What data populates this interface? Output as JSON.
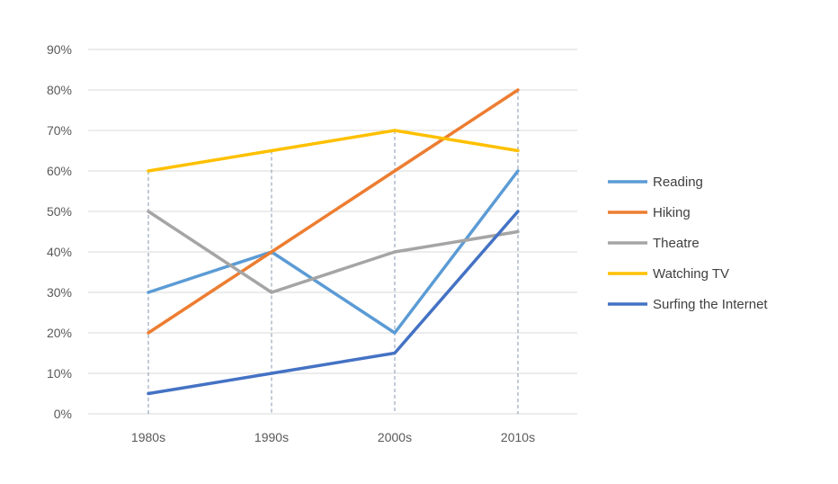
{
  "chart_data": {
    "type": "line",
    "title": "",
    "xlabel": "",
    "ylabel": "",
    "categories": [
      "1980s",
      "1990s",
      "2000s",
      "2010s"
    ],
    "ylim": [
      0,
      90
    ],
    "y_ticks": [
      "0%",
      "10%",
      "20%",
      "30%",
      "40%",
      "50%",
      "60%",
      "70%",
      "80%",
      "90%"
    ],
    "y_tick_values": [
      0,
      10,
      20,
      30,
      40,
      50,
      60,
      70,
      80,
      90
    ],
    "grid": true,
    "drop_lines": true,
    "legend_position": "right",
    "series": [
      {
        "name": "Reading",
        "color": "#5b9bd5",
        "values": [
          30,
          40,
          20,
          60
        ]
      },
      {
        "name": "Hiking",
        "color": "#ed7d31",
        "values": [
          20,
          40,
          60,
          80
        ]
      },
      {
        "name": "Theatre",
        "color": "#a5a5a5",
        "values": [
          50,
          30,
          40,
          45
        ]
      },
      {
        "name": "Watching TV",
        "color": "#ffc000",
        "values": [
          60,
          65,
          70,
          65
        ]
      },
      {
        "name": "Surfing the Internet",
        "color": "#4472c4",
        "values": [
          5,
          10,
          15,
          50
        ]
      }
    ]
  }
}
